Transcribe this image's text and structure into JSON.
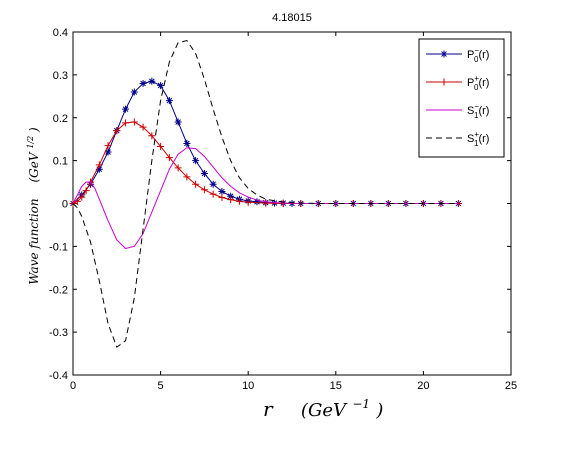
{
  "chart_data": {
    "type": "line",
    "title": "4.18015",
    "xlabel": {
      "var": "r",
      "unit_base": "(GeV",
      "unit_exp": "−1",
      "unit_close": ")"
    },
    "ylabel": {
      "text": "Wave  function",
      "unit_base": "(GeV",
      "unit_exp": "1/2",
      "unit_close": ")"
    },
    "xlim": [
      0,
      25
    ],
    "ylim": [
      -0.4,
      0.4
    ],
    "xticks": [
      0,
      5,
      10,
      15,
      20,
      25
    ],
    "yticks": [
      -0.4,
      -0.3,
      -0.2,
      -0.1,
      0,
      0.1,
      0.2,
      0.3,
      0.4
    ],
    "ytick_labels": [
      "-0.4",
      "-0.3",
      "-0.2",
      "-0.1",
      "0",
      "0.1",
      "0.2",
      "0.3",
      "0.4"
    ],
    "grid": false,
    "legend_position": "top-right",
    "series": [
      {
        "name": {
          "base": "P",
          "sub": "0",
          "sup": "−",
          "arg": "(r)"
        },
        "color": "#00008b",
        "marker": "asterisk",
        "x": [
          0,
          0.5,
          1,
          1.5,
          2,
          2.5,
          3,
          3.5,
          4,
          4.5,
          5,
          5.5,
          6,
          6.5,
          7,
          7.5,
          8,
          8.5,
          9,
          9.5,
          10,
          10.5,
          11,
          11.5,
          12,
          12.5,
          13,
          14,
          15,
          16,
          17,
          18,
          19,
          20,
          21,
          22
        ],
        "y": [
          0,
          0.02,
          0.045,
          0.08,
          0.12,
          0.17,
          0.22,
          0.26,
          0.28,
          0.285,
          0.275,
          0.24,
          0.19,
          0.14,
          0.1,
          0.07,
          0.045,
          0.028,
          0.017,
          0.01,
          0.006,
          0.004,
          0.002,
          0.001,
          0.001,
          0,
          0,
          0,
          0,
          0,
          0,
          0,
          0,
          0,
          0,
          0
        ]
      },
      {
        "name": {
          "base": "P",
          "sub": "0",
          "sup": "+",
          "arg": "(r)"
        },
        "color": "#cc0000",
        "marker": "plus",
        "x": [
          0,
          0.25,
          0.5,
          0.75,
          1,
          1.5,
          2,
          2.5,
          3,
          3.5,
          4,
          4.5,
          5,
          5.5,
          6,
          6.5,
          7,
          7.5,
          8,
          8.5,
          9,
          9.5,
          10,
          11,
          12,
          13,
          14,
          15,
          16,
          17,
          18,
          19,
          20,
          21,
          22
        ],
        "y": [
          0,
          0.005,
          0.015,
          0.03,
          0.05,
          0.09,
          0.135,
          0.17,
          0.188,
          0.19,
          0.178,
          0.158,
          0.133,
          0.107,
          0.083,
          0.062,
          0.045,
          0.032,
          0.022,
          0.014,
          0.009,
          0.005,
          0.003,
          0.001,
          0,
          0,
          0,
          0,
          0,
          0,
          0,
          0,
          0,
          0,
          0
        ]
      },
      {
        "name": {
          "base": "S",
          "sub": "1",
          "sup": "−",
          "arg": "(r)"
        },
        "color": "#cc00cc",
        "marker": "none",
        "x": [
          0,
          0.25,
          0.5,
          0.75,
          1,
          1.25,
          1.5,
          2,
          2.5,
          3,
          3.5,
          4,
          4.5,
          5,
          5.5,
          6,
          6.5,
          7,
          7.5,
          8,
          8.5,
          9,
          9.5,
          10,
          10.5,
          11,
          12,
          13,
          14,
          16,
          18,
          20,
          22
        ],
        "y": [
          0,
          0.02,
          0.04,
          0.05,
          0.05,
          0.035,
          0.01,
          -0.04,
          -0.085,
          -0.105,
          -0.1,
          -0.07,
          -0.02,
          0.03,
          0.08,
          0.115,
          0.13,
          0.128,
          0.11,
          0.085,
          0.06,
          0.04,
          0.025,
          0.015,
          0.008,
          0.004,
          0.001,
          0,
          0,
          0,
          0,
          0,
          0
        ]
      },
      {
        "name": {
          "base": "S",
          "sub": "1",
          "sup": "+",
          "arg": "(r)"
        },
        "color": "#000000",
        "marker": "none",
        "x": [
          0,
          0.25,
          0.5,
          1,
          1.5,
          2,
          2.5,
          3,
          3.5,
          4,
          4.5,
          5,
          5.5,
          6,
          6.5,
          7,
          7.5,
          8,
          8.5,
          9,
          9.5,
          10,
          10.5,
          11,
          12,
          13,
          14,
          16,
          18,
          20,
          22
        ],
        "y": [
          0,
          -0.01,
          -0.03,
          -0.09,
          -0.18,
          -0.28,
          -0.335,
          -0.32,
          -0.22,
          -0.06,
          0.1,
          0.24,
          0.33,
          0.375,
          0.38,
          0.35,
          0.29,
          0.22,
          0.155,
          0.1,
          0.06,
          0.035,
          0.02,
          0.01,
          0.003,
          0.001,
          0,
          0,
          0,
          0,
          0
        ]
      }
    ]
  }
}
